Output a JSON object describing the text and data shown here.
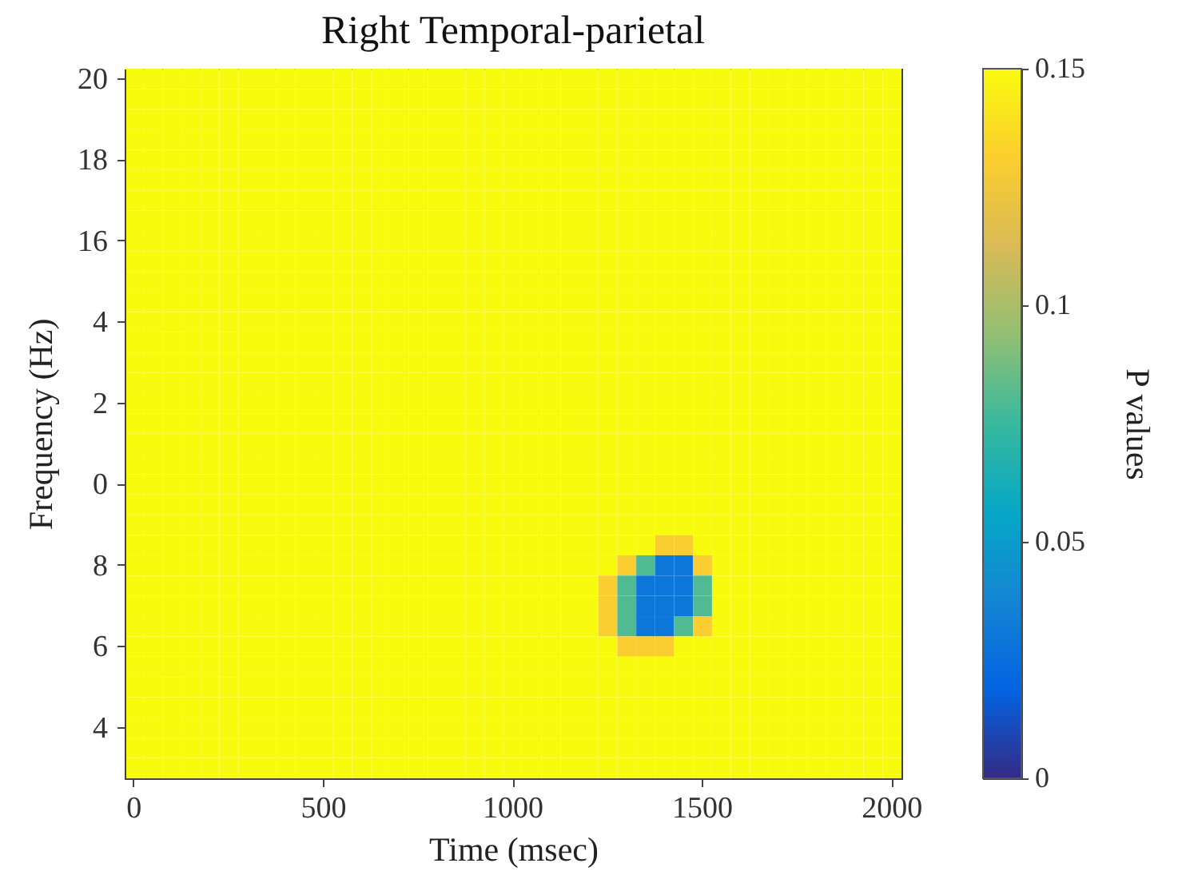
{
  "chart_data": {
    "type": "heatmap",
    "title": "Right Temporal-parietal",
    "xlabel": "Time (msec)",
    "ylabel": "Frequency (Hz)",
    "clabel": "P values",
    "clim": [
      0,
      0.15
    ],
    "cticks": [
      0,
      0.05,
      0.1,
      0.15
    ],
    "colors": [
      "#352a87",
      "#0363e1",
      "#1485d4",
      "#06a7c6",
      "#38b99e",
      "#92bf73",
      "#d9ba56",
      "#fcce2e",
      "#f9fb0e"
    ],
    "categories": [
      "0",
      null,
      null,
      null,
      null,
      null,
      null,
      null,
      null,
      null,
      "500",
      null,
      null,
      null,
      null,
      null,
      null,
      null,
      null,
      null,
      "1000",
      null,
      null,
      null,
      null,
      null,
      null,
      null,
      null,
      null,
      "1500",
      null,
      null,
      null,
      null,
      null,
      null,
      null,
      null,
      null,
      "2000"
    ],
    "y_categories": [
      "20",
      null,
      null,
      null,
      "18",
      null,
      null,
      null,
      "16",
      null,
      null,
      null,
      "4",
      null,
      null,
      null,
      "2",
      null,
      null,
      null,
      "0",
      null,
      null,
      null,
      "8",
      null,
      null,
      null,
      "6",
      null,
      null,
      null,
      "4",
      null,
      null
    ],
    "cells": [
      [
        0.15,
        0.15,
        0.15,
        0.15,
        0.15,
        0.15,
        0.15,
        0.15,
        0.15,
        0.15,
        0.15,
        0.15,
        0.15,
        0.15,
        0.15,
        0.15,
        0.15,
        0.15,
        0.15,
        0.15,
        0.15,
        0.15,
        0.15,
        0.15,
        0.15,
        0.15,
        0.15,
        0.15,
        0.15,
        0.15,
        0.15,
        0.15,
        0.15,
        0.15,
        0.15,
        0.15,
        0.15,
        0.15,
        0.15,
        0.15,
        0.15
      ],
      [
        0.15,
        0.15,
        0.15,
        0.15,
        0.15,
        0.15,
        0.15,
        0.15,
        0.15,
        0.15,
        0.15,
        0.15,
        0.15,
        0.15,
        0.15,
        0.15,
        0.15,
        0.15,
        0.15,
        0.15,
        0.15,
        0.15,
        0.15,
        0.15,
        0.15,
        0.15,
        0.15,
        0.15,
        0.15,
        0.15,
        0.15,
        0.15,
        0.15,
        0.15,
        0.15,
        0.15,
        0.15,
        0.15,
        0.15,
        0.15,
        0.15
      ],
      [
        0.15,
        0.15,
        0.15,
        0.15,
        0.15,
        0.15,
        0.15,
        0.15,
        0.15,
        0.15,
        0.15,
        0.15,
        0.15,
        0.15,
        0.15,
        0.15,
        0.15,
        0.15,
        0.15,
        0.15,
        0.15,
        0.15,
        0.15,
        0.15,
        0.15,
        0.15,
        0.15,
        0.15,
        0.15,
        0.15,
        0.15,
        0.15,
        0.15,
        0.15,
        0.15,
        0.15,
        0.15,
        0.15,
        0.15,
        0.15,
        0.15
      ],
      [
        0.15,
        0.15,
        0.15,
        0.15,
        0.15,
        0.15,
        0.15,
        0.15,
        0.15,
        0.15,
        0.15,
        0.15,
        0.15,
        0.15,
        0.15,
        0.15,
        0.15,
        0.15,
        0.15,
        0.15,
        0.15,
        0.15,
        0.15,
        0.15,
        0.15,
        0.15,
        0.15,
        0.15,
        0.15,
        0.15,
        0.15,
        0.15,
        0.15,
        0.15,
        0.15,
        0.15,
        0.15,
        0.15,
        0.15,
        0.15,
        0.15
      ],
      [
        0.15,
        0.15,
        0.15,
        0.15,
        0.15,
        0.15,
        0.15,
        0.15,
        0.15,
        0.15,
        0.15,
        0.15,
        0.15,
        0.15,
        0.15,
        0.15,
        0.15,
        0.15,
        0.15,
        0.15,
        0.15,
        0.15,
        0.15,
        0.15,
        0.15,
        0.15,
        0.15,
        0.15,
        0.15,
        0.15,
        0.15,
        0.15,
        0.15,
        0.15,
        0.15,
        0.15,
        0.15,
        0.15,
        0.15,
        0.15,
        0.15
      ],
      [
        0.15,
        0.15,
        0.15,
        0.15,
        0.15,
        0.15,
        0.15,
        0.15,
        0.15,
        0.15,
        0.15,
        0.15,
        0.15,
        0.15,
        0.15,
        0.15,
        0.15,
        0.15,
        0.15,
        0.15,
        0.15,
        0.15,
        0.15,
        0.15,
        0.15,
        0.15,
        0.15,
        0.15,
        0.15,
        0.15,
        0.15,
        0.15,
        0.15,
        0.15,
        0.15,
        0.15,
        0.15,
        0.15,
        0.15,
        0.15,
        0.15
      ],
      [
        0.15,
        0.15,
        0.15,
        0.15,
        0.15,
        0.15,
        0.15,
        0.15,
        0.15,
        0.15,
        0.15,
        0.15,
        0.15,
        0.15,
        0.15,
        0.15,
        0.15,
        0.15,
        0.15,
        0.15,
        0.15,
        0.15,
        0.15,
        0.15,
        0.15,
        0.15,
        0.15,
        0.15,
        0.15,
        0.15,
        0.15,
        0.15,
        0.15,
        0.15,
        0.15,
        0.15,
        0.15,
        0.15,
        0.15,
        0.15,
        0.15
      ],
      [
        0.15,
        0.15,
        0.15,
        0.15,
        0.15,
        0.15,
        0.15,
        0.15,
        0.15,
        0.15,
        0.15,
        0.15,
        0.15,
        0.15,
        0.15,
        0.15,
        0.15,
        0.15,
        0.15,
        0.15,
        0.15,
        0.15,
        0.15,
        0.15,
        0.15,
        0.15,
        0.15,
        0.15,
        0.15,
        0.15,
        0.15,
        0.15,
        0.15,
        0.15,
        0.15,
        0.15,
        0.15,
        0.15,
        0.15,
        0.15,
        0.15
      ],
      [
        0.15,
        0.15,
        0.15,
        0.15,
        0.15,
        0.15,
        0.15,
        0.15,
        0.15,
        0.15,
        0.15,
        0.15,
        0.15,
        0.15,
        0.15,
        0.15,
        0.15,
        0.15,
        0.15,
        0.15,
        0.15,
        0.15,
        0.15,
        0.15,
        0.15,
        0.15,
        0.15,
        0.15,
        0.15,
        0.15,
        0.15,
        0.15,
        0.15,
        0.15,
        0.15,
        0.15,
        0.15,
        0.15,
        0.15,
        0.15,
        0.15
      ],
      [
        0.15,
        0.15,
        0.15,
        0.15,
        0.15,
        0.15,
        0.15,
        0.15,
        0.15,
        0.15,
        0.15,
        0.15,
        0.15,
        0.15,
        0.15,
        0.15,
        0.15,
        0.15,
        0.15,
        0.15,
        0.15,
        0.15,
        0.15,
        0.15,
        0.15,
        0.15,
        0.15,
        0.15,
        0.15,
        0.15,
        0.15,
        0.15,
        0.15,
        0.15,
        0.15,
        0.15,
        0.15,
        0.15,
        0.15,
        0.15,
        0.15
      ],
      [
        0.15,
        0.15,
        0.15,
        0.15,
        0.15,
        0.15,
        0.15,
        0.15,
        0.15,
        0.15,
        0.15,
        0.15,
        0.15,
        0.15,
        0.15,
        0.15,
        0.15,
        0.15,
        0.15,
        0.15,
        0.15,
        0.15,
        0.15,
        0.15,
        0.15,
        0.15,
        0.15,
        0.15,
        0.15,
        0.15,
        0.15,
        0.15,
        0.15,
        0.15,
        0.15,
        0.15,
        0.15,
        0.15,
        0.15,
        0.15,
        0.15
      ],
      [
        0.15,
        0.15,
        0.15,
        0.15,
        0.15,
        0.15,
        0.15,
        0.15,
        0.15,
        0.15,
        0.15,
        0.15,
        0.15,
        0.15,
        0.15,
        0.15,
        0.15,
        0.15,
        0.15,
        0.15,
        0.15,
        0.15,
        0.15,
        0.15,
        0.15,
        0.15,
        0.15,
        0.15,
        0.15,
        0.15,
        0.15,
        0.15,
        0.15,
        0.15,
        0.15,
        0.15,
        0.15,
        0.15,
        0.15,
        0.15,
        0.15
      ],
      [
        0.15,
        0.15,
        0.15,
        0.15,
        0.15,
        0.15,
        0.15,
        0.15,
        0.15,
        0.15,
        0.15,
        0.15,
        0.15,
        0.15,
        0.15,
        0.15,
        0.15,
        0.15,
        0.15,
        0.15,
        0.15,
        0.15,
        0.15,
        0.15,
        0.15,
        0.15,
        0.15,
        0.15,
        0.15,
        0.15,
        0.15,
        0.15,
        0.15,
        0.15,
        0.15,
        0.15,
        0.15,
        0.15,
        0.15,
        0.15,
        0.15
      ],
      [
        0.15,
        0.15,
        0.15,
        0.15,
        0.15,
        0.15,
        0.15,
        0.15,
        0.15,
        0.15,
        0.15,
        0.15,
        0.15,
        0.15,
        0.15,
        0.15,
        0.15,
        0.15,
        0.15,
        0.15,
        0.15,
        0.15,
        0.15,
        0.15,
        0.15,
        0.15,
        0.15,
        0.15,
        0.15,
        0.15,
        0.15,
        0.15,
        0.15,
        0.15,
        0.15,
        0.15,
        0.15,
        0.15,
        0.15,
        0.15,
        0.15
      ],
      [
        0.15,
        0.15,
        0.15,
        0.15,
        0.15,
        0.15,
        0.15,
        0.15,
        0.15,
        0.15,
        0.15,
        0.15,
        0.15,
        0.15,
        0.15,
        0.15,
        0.15,
        0.15,
        0.15,
        0.15,
        0.15,
        0.15,
        0.15,
        0.15,
        0.15,
        0.15,
        0.15,
        0.15,
        0.15,
        0.15,
        0.15,
        0.15,
        0.15,
        0.15,
        0.15,
        0.15,
        0.15,
        0.15,
        0.15,
        0.15,
        0.15
      ],
      [
        0.15,
        0.15,
        0.15,
        0.15,
        0.15,
        0.15,
        0.15,
        0.15,
        0.15,
        0.15,
        0.15,
        0.15,
        0.15,
        0.15,
        0.15,
        0.15,
        0.15,
        0.15,
        0.15,
        0.15,
        0.15,
        0.15,
        0.15,
        0.15,
        0.15,
        0.15,
        0.15,
        0.15,
        0.15,
        0.15,
        0.15,
        0.15,
        0.15,
        0.15,
        0.15,
        0.15,
        0.15,
        0.15,
        0.15,
        0.15,
        0.15
      ],
      [
        0.15,
        0.15,
        0.15,
        0.15,
        0.15,
        0.15,
        0.15,
        0.15,
        0.15,
        0.15,
        0.15,
        0.15,
        0.15,
        0.15,
        0.15,
        0.15,
        0.15,
        0.15,
        0.15,
        0.15,
        0.15,
        0.15,
        0.15,
        0.15,
        0.15,
        0.15,
        0.15,
        0.15,
        0.15,
        0.15,
        0.15,
        0.15,
        0.15,
        0.15,
        0.15,
        0.15,
        0.15,
        0.15,
        0.15,
        0.15,
        0.15
      ],
      [
        0.15,
        0.15,
        0.15,
        0.15,
        0.15,
        0.15,
        0.15,
        0.15,
        0.15,
        0.15,
        0.15,
        0.15,
        0.15,
        0.15,
        0.15,
        0.15,
        0.15,
        0.15,
        0.15,
        0.15,
        0.15,
        0.15,
        0.15,
        0.15,
        0.15,
        0.15,
        0.15,
        0.15,
        0.15,
        0.15,
        0.15,
        0.15,
        0.15,
        0.15,
        0.15,
        0.15,
        0.15,
        0.15,
        0.15,
        0.15,
        0.15
      ],
      [
        0.15,
        0.15,
        0.15,
        0.15,
        0.15,
        0.15,
        0.15,
        0.15,
        0.15,
        0.15,
        0.15,
        0.15,
        0.15,
        0.15,
        0.15,
        0.15,
        0.15,
        0.15,
        0.15,
        0.15,
        0.15,
        0.15,
        0.15,
        0.15,
        0.15,
        0.15,
        0.15,
        0.15,
        0.15,
        0.15,
        0.15,
        0.15,
        0.15,
        0.15,
        0.15,
        0.15,
        0.15,
        0.15,
        0.15,
        0.15,
        0.15
      ],
      [
        0.15,
        0.15,
        0.15,
        0.15,
        0.15,
        0.15,
        0.15,
        0.15,
        0.15,
        0.15,
        0.15,
        0.15,
        0.15,
        0.15,
        0.15,
        0.15,
        0.15,
        0.15,
        0.15,
        0.15,
        0.15,
        0.15,
        0.15,
        0.15,
        0.15,
        0.15,
        0.15,
        0.15,
        0.15,
        0.15,
        0.15,
        0.15,
        0.15,
        0.15,
        0.15,
        0.15,
        0.15,
        0.15,
        0.15,
        0.15,
        0.15
      ],
      [
        0.15,
        0.15,
        0.15,
        0.15,
        0.15,
        0.15,
        0.15,
        0.15,
        0.15,
        0.15,
        0.15,
        0.15,
        0.15,
        0.15,
        0.15,
        0.15,
        0.15,
        0.15,
        0.15,
        0.15,
        0.15,
        0.15,
        0.15,
        0.15,
        0.15,
        0.15,
        0.15,
        0.15,
        0.15,
        0.15,
        0.15,
        0.15,
        0.15,
        0.15,
        0.15,
        0.15,
        0.15,
        0.15,
        0.15,
        0.15,
        0.15
      ],
      [
        0.15,
        0.15,
        0.15,
        0.15,
        0.15,
        0.15,
        0.15,
        0.15,
        0.15,
        0.15,
        0.15,
        0.15,
        0.15,
        0.15,
        0.15,
        0.15,
        0.15,
        0.15,
        0.15,
        0.15,
        0.15,
        0.15,
        0.15,
        0.15,
        0.15,
        0.15,
        0.15,
        0.15,
        0.15,
        0.15,
        0.15,
        0.15,
        0.15,
        0.15,
        0.15,
        0.15,
        0.15,
        0.15,
        0.15,
        0.15,
        0.15
      ],
      [
        0.15,
        0.15,
        0.15,
        0.15,
        0.15,
        0.15,
        0.15,
        0.15,
        0.15,
        0.15,
        0.15,
        0.15,
        0.15,
        0.15,
        0.15,
        0.15,
        0.15,
        0.15,
        0.15,
        0.15,
        0.15,
        0.15,
        0.15,
        0.15,
        0.15,
        0.15,
        0.15,
        0.15,
        0.15,
        0.15,
        0.15,
        0.15,
        0.15,
        0.15,
        0.15,
        0.15,
        0.15,
        0.15,
        0.15,
        0.15,
        0.15
      ],
      [
        0.15,
        0.15,
        0.15,
        0.15,
        0.15,
        0.15,
        0.15,
        0.15,
        0.15,
        0.15,
        0.15,
        0.15,
        0.15,
        0.15,
        0.15,
        0.15,
        0.15,
        0.15,
        0.15,
        0.15,
        0.15,
        0.15,
        0.15,
        0.15,
        0.15,
        0.15,
        0.15,
        0.15,
        0.13,
        0.13,
        0.15,
        0.15,
        0.15,
        0.15,
        0.15,
        0.15,
        0.15,
        0.15,
        0.15,
        0.15,
        0.15
      ],
      [
        0.15,
        0.15,
        0.15,
        0.15,
        0.15,
        0.15,
        0.15,
        0.15,
        0.15,
        0.15,
        0.15,
        0.15,
        0.15,
        0.15,
        0.15,
        0.15,
        0.15,
        0.15,
        0.15,
        0.15,
        0.15,
        0.15,
        0.15,
        0.15,
        0.15,
        0.15,
        0.13,
        0.08,
        0.03,
        0.03,
        0.13,
        0.15,
        0.15,
        0.15,
        0.15,
        0.15,
        0.15,
        0.15,
        0.15,
        0.15,
        0.15
      ],
      [
        0.15,
        0.15,
        0.15,
        0.15,
        0.15,
        0.15,
        0.15,
        0.15,
        0.15,
        0.15,
        0.15,
        0.15,
        0.15,
        0.15,
        0.15,
        0.15,
        0.15,
        0.15,
        0.15,
        0.15,
        0.15,
        0.15,
        0.15,
        0.15,
        0.15,
        0.13,
        0.08,
        0.03,
        0.03,
        0.03,
        0.08,
        0.15,
        0.15,
        0.15,
        0.15,
        0.15,
        0.15,
        0.15,
        0.15,
        0.15,
        0.15
      ],
      [
        0.15,
        0.15,
        0.15,
        0.15,
        0.15,
        0.15,
        0.15,
        0.15,
        0.15,
        0.15,
        0.15,
        0.15,
        0.15,
        0.15,
        0.15,
        0.15,
        0.15,
        0.15,
        0.15,
        0.15,
        0.15,
        0.15,
        0.15,
        0.15,
        0.15,
        0.13,
        0.08,
        0.03,
        0.03,
        0.03,
        0.08,
        0.15,
        0.15,
        0.15,
        0.15,
        0.15,
        0.15,
        0.15,
        0.15,
        0.15,
        0.15
      ],
      [
        0.15,
        0.15,
        0.15,
        0.15,
        0.15,
        0.15,
        0.15,
        0.15,
        0.15,
        0.15,
        0.15,
        0.15,
        0.15,
        0.15,
        0.15,
        0.15,
        0.15,
        0.15,
        0.15,
        0.15,
        0.15,
        0.15,
        0.15,
        0.15,
        0.15,
        0.13,
        0.08,
        0.03,
        0.03,
        0.08,
        0.13,
        0.15,
        0.15,
        0.15,
        0.15,
        0.15,
        0.15,
        0.15,
        0.15,
        0.15,
        0.15
      ],
      [
        0.15,
        0.15,
        0.15,
        0.15,
        0.15,
        0.15,
        0.15,
        0.15,
        0.15,
        0.15,
        0.15,
        0.15,
        0.15,
        0.15,
        0.15,
        0.15,
        0.15,
        0.15,
        0.15,
        0.15,
        0.15,
        0.15,
        0.15,
        0.15,
        0.15,
        0.15,
        0.13,
        0.13,
        0.13,
        0.15,
        0.15,
        0.15,
        0.15,
        0.15,
        0.15,
        0.15,
        0.15,
        0.15,
        0.15,
        0.15,
        0.15
      ],
      [
        0.15,
        0.15,
        0.15,
        0.15,
        0.15,
        0.15,
        0.15,
        0.15,
        0.15,
        0.15,
        0.15,
        0.15,
        0.15,
        0.15,
        0.15,
        0.15,
        0.15,
        0.15,
        0.15,
        0.15,
        0.15,
        0.15,
        0.15,
        0.15,
        0.15,
        0.15,
        0.15,
        0.15,
        0.15,
        0.15,
        0.15,
        0.15,
        0.15,
        0.15,
        0.15,
        0.15,
        0.15,
        0.15,
        0.15,
        0.15,
        0.15
      ],
      [
        0.15,
        0.15,
        0.15,
        0.15,
        0.15,
        0.15,
        0.15,
        0.15,
        0.15,
        0.15,
        0.15,
        0.15,
        0.15,
        0.15,
        0.15,
        0.15,
        0.15,
        0.15,
        0.15,
        0.15,
        0.15,
        0.15,
        0.15,
        0.15,
        0.15,
        0.15,
        0.15,
        0.15,
        0.15,
        0.15,
        0.15,
        0.15,
        0.15,
        0.15,
        0.15,
        0.15,
        0.15,
        0.15,
        0.15,
        0.15,
        0.15
      ],
      [
        0.15,
        0.15,
        0.15,
        0.15,
        0.15,
        0.15,
        0.15,
        0.15,
        0.15,
        0.15,
        0.15,
        0.15,
        0.15,
        0.15,
        0.15,
        0.15,
        0.15,
        0.15,
        0.15,
        0.15,
        0.15,
        0.15,
        0.15,
        0.15,
        0.15,
        0.15,
        0.15,
        0.15,
        0.15,
        0.15,
        0.15,
        0.15,
        0.15,
        0.15,
        0.15,
        0.15,
        0.15,
        0.15,
        0.15,
        0.15,
        0.15
      ],
      [
        0.15,
        0.15,
        0.15,
        0.15,
        0.15,
        0.15,
        0.15,
        0.15,
        0.15,
        0.15,
        0.15,
        0.15,
        0.15,
        0.15,
        0.15,
        0.15,
        0.15,
        0.15,
        0.15,
        0.15,
        0.15,
        0.15,
        0.15,
        0.15,
        0.15,
        0.15,
        0.15,
        0.15,
        0.15,
        0.15,
        0.15,
        0.15,
        0.15,
        0.15,
        0.15,
        0.15,
        0.15,
        0.15,
        0.15,
        0.15,
        0.15
      ],
      [
        0.15,
        0.15,
        0.15,
        0.15,
        0.15,
        0.15,
        0.15,
        0.15,
        0.15,
        0.15,
        0.15,
        0.15,
        0.15,
        0.15,
        0.15,
        0.15,
        0.15,
        0.15,
        0.15,
        0.15,
        0.15,
        0.15,
        0.15,
        0.15,
        0.15,
        0.15,
        0.15,
        0.15,
        0.15,
        0.15,
        0.15,
        0.15,
        0.15,
        0.15,
        0.15,
        0.15,
        0.15,
        0.15,
        0.15,
        0.15,
        0.15
      ],
      [
        0.15,
        0.15,
        0.15,
        0.15,
        0.15,
        0.15,
        0.15,
        0.15,
        0.15,
        0.15,
        0.15,
        0.15,
        0.15,
        0.15,
        0.15,
        0.15,
        0.15,
        0.15,
        0.15,
        0.15,
        0.15,
        0.15,
        0.15,
        0.15,
        0.15,
        0.15,
        0.15,
        0.15,
        0.15,
        0.15,
        0.15,
        0.15,
        0.15,
        0.15,
        0.15,
        0.15,
        0.15,
        0.15,
        0.15,
        0.15,
        0.15
      ]
    ]
  }
}
